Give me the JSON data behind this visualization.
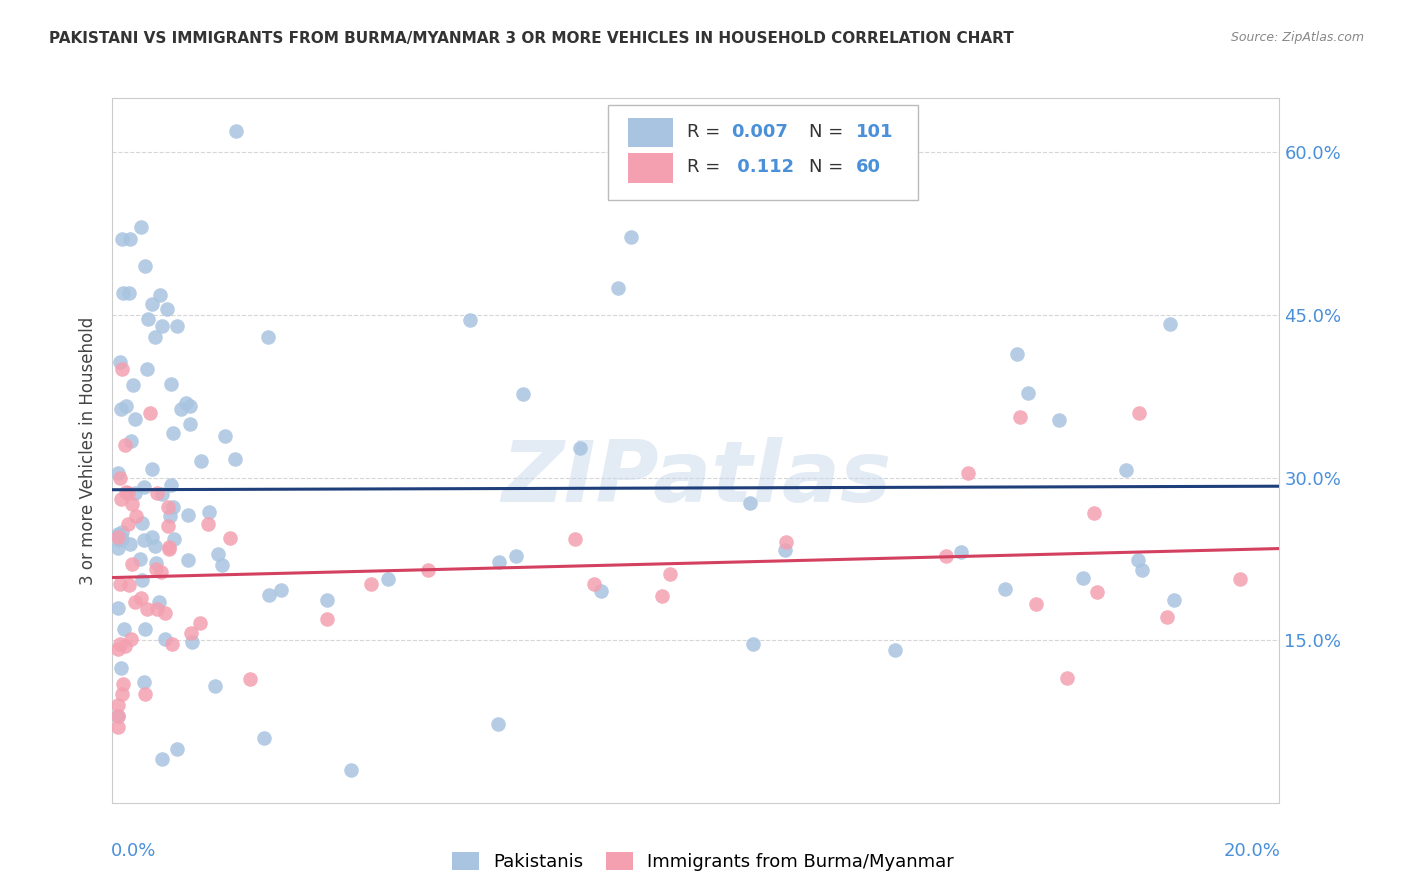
{
  "title": "PAKISTANI VS IMMIGRANTS FROM BURMA/MYANMAR 3 OR MORE VEHICLES IN HOUSEHOLD CORRELATION CHART",
  "source": "Source: ZipAtlas.com",
  "ylabel": "3 or more Vehicles in Household",
  "xlim": [
    0.0,
    0.2
  ],
  "ylim": [
    0.0,
    0.65
  ],
  "yticks": [
    0.15,
    0.3,
    0.45,
    0.6
  ],
  "ytick_labels": [
    "15.0%",
    "30.0%",
    "45.0%",
    "60.0%"
  ],
  "series1_label": "Pakistanis",
  "series2_label": "Immigrants from Burma/Myanmar",
  "series1_color": "#a8c4e0",
  "series2_color": "#f4a0b0",
  "series1_R": "0.007",
  "series1_N": "101",
  "series2_R": "0.112",
  "series2_N": "60",
  "line1_color": "#1f3f7a",
  "line2_color": "#d44060",
  "watermark": "ZIPatlas",
  "background_color": "#ffffff",
  "grid_color": "#cccccc",
  "axis_label_color": "#4a90d9",
  "title_color": "#333333",
  "source_color": "#888888"
}
